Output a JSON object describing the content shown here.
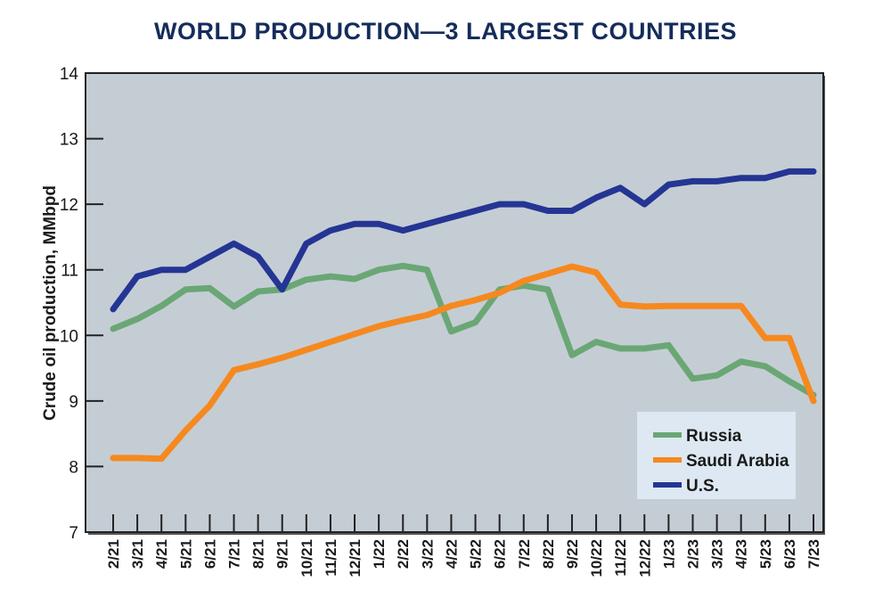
{
  "chart_data": {
    "type": "line",
    "title": "WORLD PRODUCTION—3 LARGEST COUNTRIES",
    "xlabel": "",
    "ylabel": "Crude oil production, MMbpd",
    "ylim": [
      7,
      14
    ],
    "yticks": [
      7,
      8,
      9,
      10,
      11,
      12,
      13,
      14
    ],
    "grid": false,
    "legend_position": "bottom-right",
    "x": [
      "2/21",
      "3/21",
      "4/21",
      "5/21",
      "6/21",
      "7/21",
      "8/21",
      "9/21",
      "10/21",
      "11/21",
      "12/21",
      "1/22",
      "2/22",
      "3/22",
      "4/22",
      "5/22",
      "6/22",
      "7/22",
      "8/22",
      "9/22",
      "10/22",
      "11/22",
      "12/22",
      "1/23",
      "2/23",
      "3/23",
      "4/23",
      "5/23",
      "6/23",
      "7/23"
    ],
    "series": [
      {
        "name": "Russia",
        "color": "#6aa775",
        "values": [
          10.1,
          10.25,
          10.45,
          10.7,
          10.72,
          10.44,
          10.67,
          10.7,
          10.85,
          10.9,
          10.86,
          11.0,
          11.06,
          11.0,
          10.06,
          10.2,
          10.7,
          10.76,
          10.7,
          9.7,
          9.9,
          9.8,
          9.8,
          9.85,
          9.34,
          9.39,
          9.6,
          9.53,
          9.3,
          9.09
        ]
      },
      {
        "name": "Saudi Arabia",
        "color": "#f5891f",
        "values": [
          8.13,
          8.13,
          8.12,
          8.55,
          8.93,
          9.47,
          9.56,
          9.66,
          9.78,
          9.9,
          10.02,
          10.14,
          10.23,
          10.31,
          10.45,
          10.54,
          10.65,
          10.83,
          10.94,
          11.05,
          10.96,
          10.47,
          10.44,
          10.45,
          10.45,
          10.45,
          10.45,
          9.96,
          9.96,
          9.0
        ]
      },
      {
        "name": "U.S.",
        "color": "#243594",
        "values": [
          10.4,
          10.9,
          11.0,
          11.0,
          11.2,
          11.4,
          11.2,
          10.7,
          11.4,
          11.6,
          11.7,
          11.7,
          11.6,
          11.7,
          11.8,
          11.9,
          12.0,
          12.0,
          11.9,
          11.9,
          12.1,
          12.25,
          12.0,
          12.3,
          12.35,
          12.35,
          12.4,
          12.4,
          12.5,
          12.5
        ]
      }
    ]
  },
  "colors": {
    "title": "#152c5b",
    "plot_background": "#c5cdd4",
    "legend_background": "#dde8f2"
  }
}
